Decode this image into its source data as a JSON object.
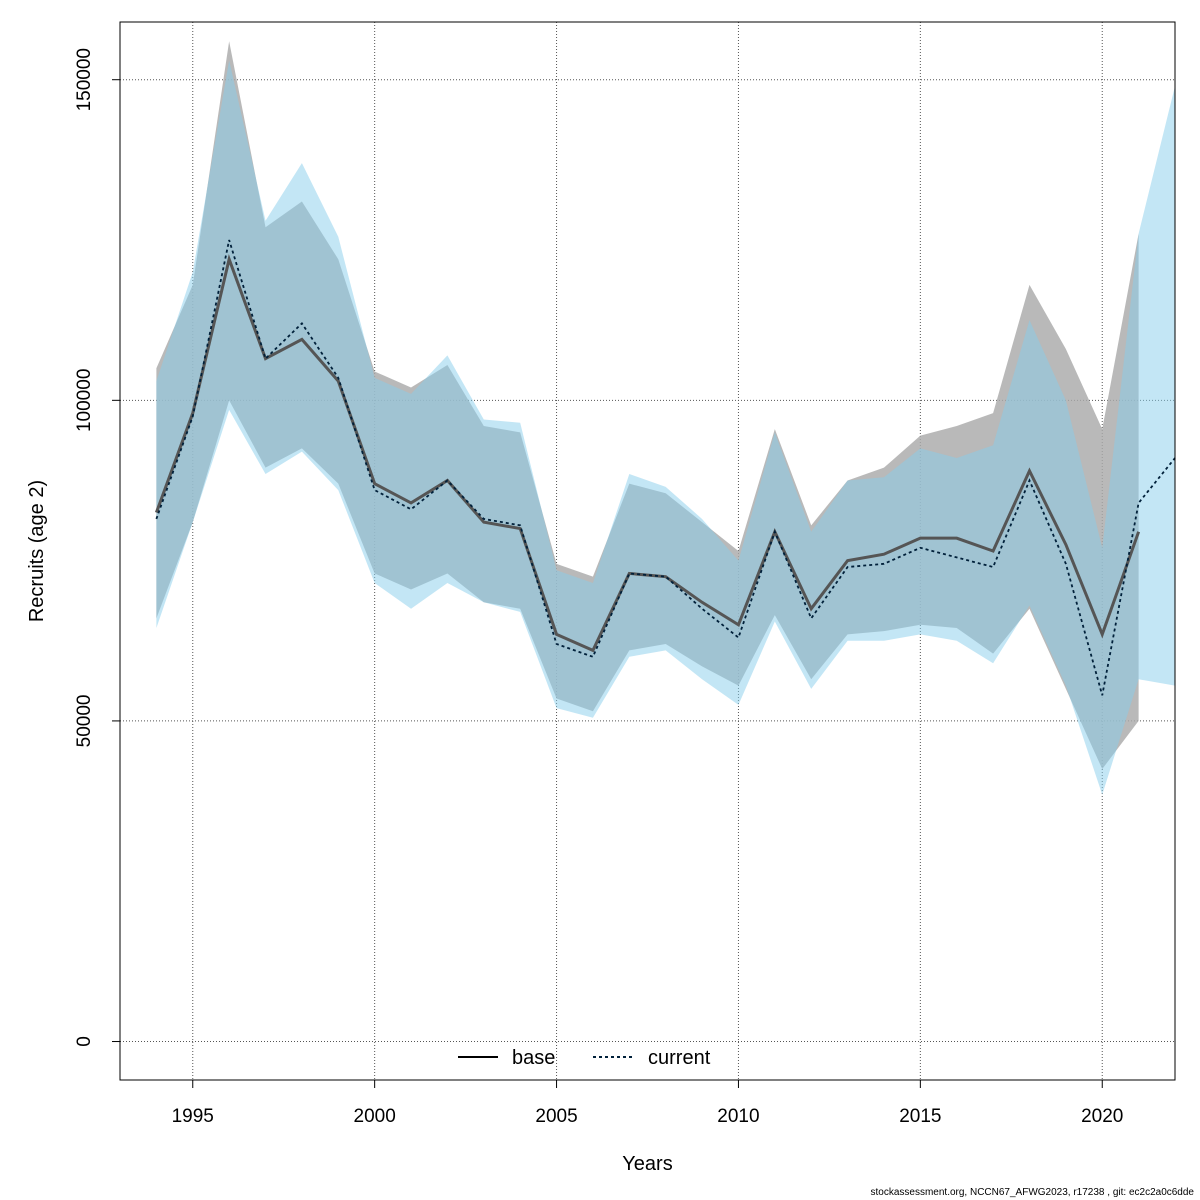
{
  "chart_data": {
    "type": "line",
    "xlabel": "Years",
    "ylabel": "Recruits (age 2)",
    "xlim": [
      1993,
      2022
    ],
    "ylim": [
      -6000,
      159000
    ],
    "x_ticks": [
      1995,
      2000,
      2005,
      2010,
      2015,
      2020
    ],
    "y_ticks": [
      0,
      50000,
      100000,
      150000
    ],
    "grid": true,
    "legend_position": "bottom-center",
    "colors": {
      "base_line": "#000000",
      "base_band": "#a9a9a9",
      "current_line": "#00203a",
      "current_band": "#87ceeb"
    },
    "series": [
      {
        "name": "base",
        "style": "solid",
        "x": [
          1994,
          1995,
          1996,
          1997,
          1998,
          1999,
          2000,
          2001,
          2002,
          2003,
          2004,
          2005,
          2006,
          2007,
          2008,
          2009,
          2010,
          2011,
          2012,
          2013,
          2014,
          2015,
          2016,
          2017,
          2018,
          2019,
          2020,
          2021
        ],
        "values": [
          82500,
          98000,
          122000,
          106500,
          109500,
          103000,
          87000,
          84000,
          87500,
          81000,
          80000,
          63500,
          61000,
          73000,
          72500,
          68500,
          65000,
          79500,
          67500,
          75000,
          76000,
          78500,
          78500,
          76500,
          89000,
          77500,
          63500,
          79500
        ],
        "upper": [
          105000,
          118000,
          156000,
          127000,
          131000,
          122000,
          104500,
          102000,
          105500,
          96000,
          95000,
          74500,
          72500,
          87000,
          85500,
          81000,
          76500,
          95500,
          80500,
          87500,
          89500,
          94500,
          96000,
          98000,
          118000,
          108000,
          95500,
          126000
        ],
        "lower": [
          66000,
          81000,
          100000,
          89500,
          92500,
          87000,
          73000,
          70500,
          73000,
          68500,
          67500,
          53500,
          51500,
          61000,
          62000,
          58500,
          55500,
          66500,
          56500,
          63500,
          64000,
          65000,
          64500,
          60500,
          67500,
          55000,
          42500,
          50000
        ]
      },
      {
        "name": "current",
        "style": "dotted",
        "x": [
          1994,
          1995,
          1996,
          1997,
          1998,
          1999,
          2000,
          2001,
          2002,
          2003,
          2004,
          2005,
          2006,
          2007,
          2008,
          2009,
          2010,
          2011,
          2012,
          2013,
          2014,
          2015,
          2016,
          2017,
          2018,
          2019,
          2020,
          2021,
          2022
        ],
        "values": [
          81500,
          97500,
          125000,
          106500,
          112000,
          103500,
          86000,
          83000,
          87500,
          81500,
          80500,
          62000,
          60000,
          73000,
          72500,
          67500,
          63000,
          79500,
          66000,
          74000,
          74500,
          77000,
          75500,
          74000,
          87500,
          74500,
          54000,
          84000,
          91000
        ],
        "upper": [
          103000,
          120000,
          153000,
          128000,
          137000,
          125500,
          103500,
          101000,
          107000,
          97000,
          96500,
          73500,
          71500,
          88500,
          86500,
          81500,
          75000,
          95000,
          79500,
          87500,
          88000,
          92500,
          91000,
          93000,
          112500,
          100000,
          77000,
          126000,
          149000
        ],
        "lower": [
          64500,
          81000,
          98500,
          88500,
          92000,
          86000,
          71500,
          67500,
          71500,
          68500,
          67000,
          52000,
          50500,
          60000,
          61000,
          56500,
          52500,
          65500,
          55000,
          62500,
          62500,
          63500,
          62500,
          59000,
          68000,
          55500,
          38500,
          56500,
          55500
        ]
      }
    ],
    "legend": [
      {
        "label": "base",
        "style": "solid"
      },
      {
        "label": "current",
        "style": "dotted"
      }
    ]
  },
  "footer": "stockassessment.org, NCCN67_AFWG2023, r17238 , git: ec2c2a0c6dde"
}
